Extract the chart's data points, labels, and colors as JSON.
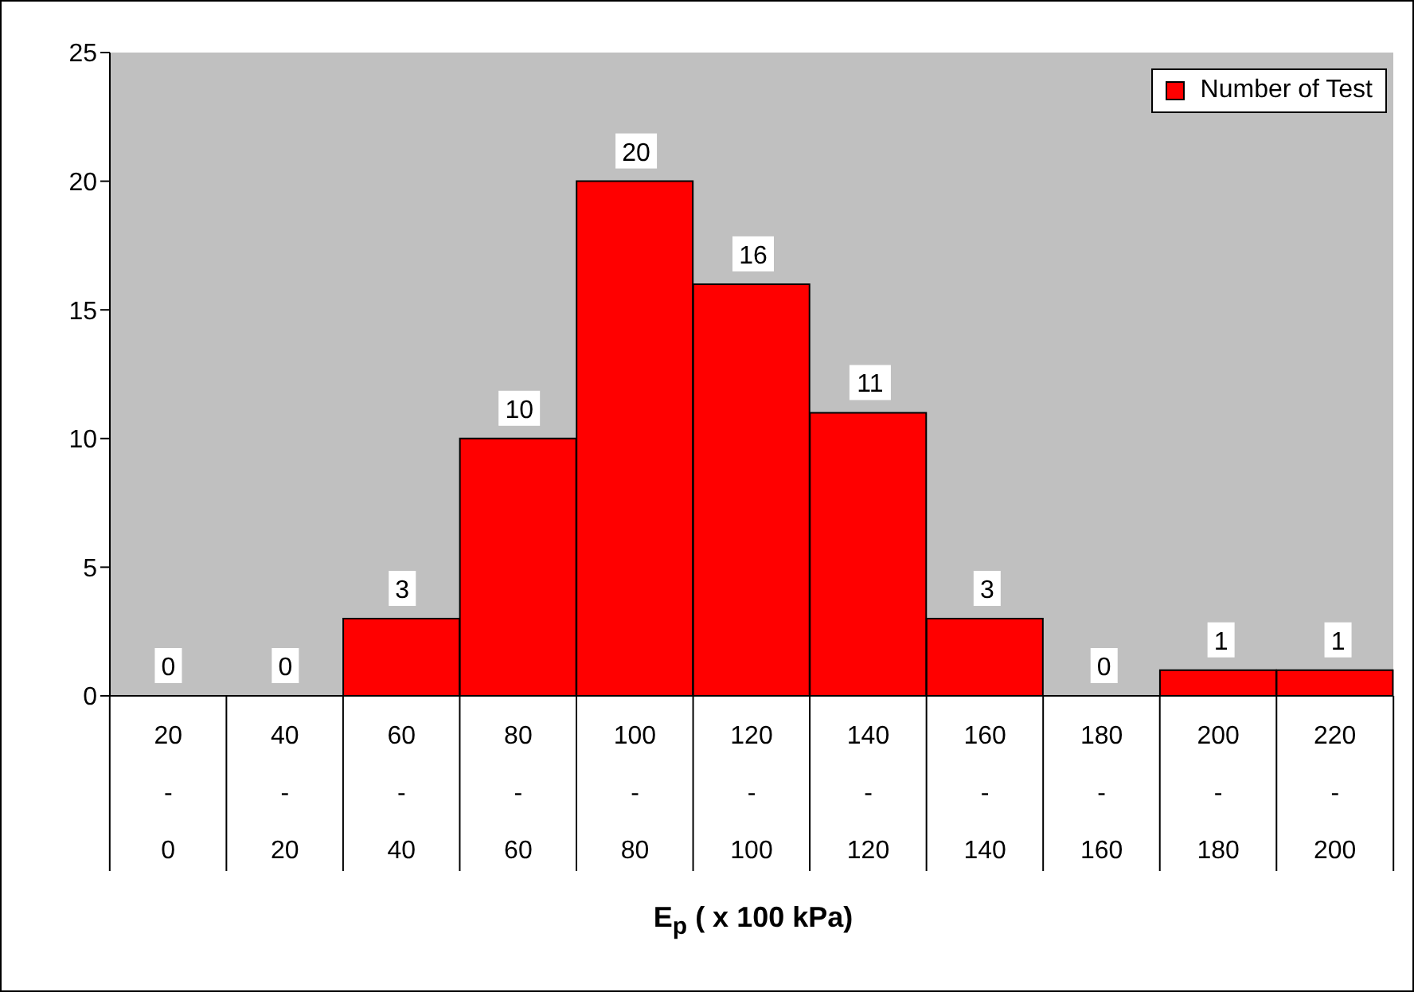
{
  "chart_data": {
    "type": "bar",
    "xlabel": "E$_{p}$ ( x 100 kPa)",
    "categories": [
      "20\n-\n0",
      "40\n-\n20",
      "60\n-\n40",
      "80\n-\n60",
      "100\n-\n80",
      "120\n-\n100",
      "140\n-\n120",
      "160\n-\n140",
      "180\n-\n160",
      "200\n-\n180",
      "220\n-\n200"
    ],
    "series": [
      {
        "name": "Number of Test",
        "color": "#ff0000",
        "values": [
          0,
          0,
          3,
          10,
          20,
          16,
          11,
          3,
          0,
          1,
          1
        ]
      }
    ],
    "ylim": [
      0,
      25
    ],
    "yticks": [
      0,
      5,
      10,
      15,
      20,
      25
    ],
    "data_labels": true,
    "legend": "top right",
    "grid": false
  }
}
